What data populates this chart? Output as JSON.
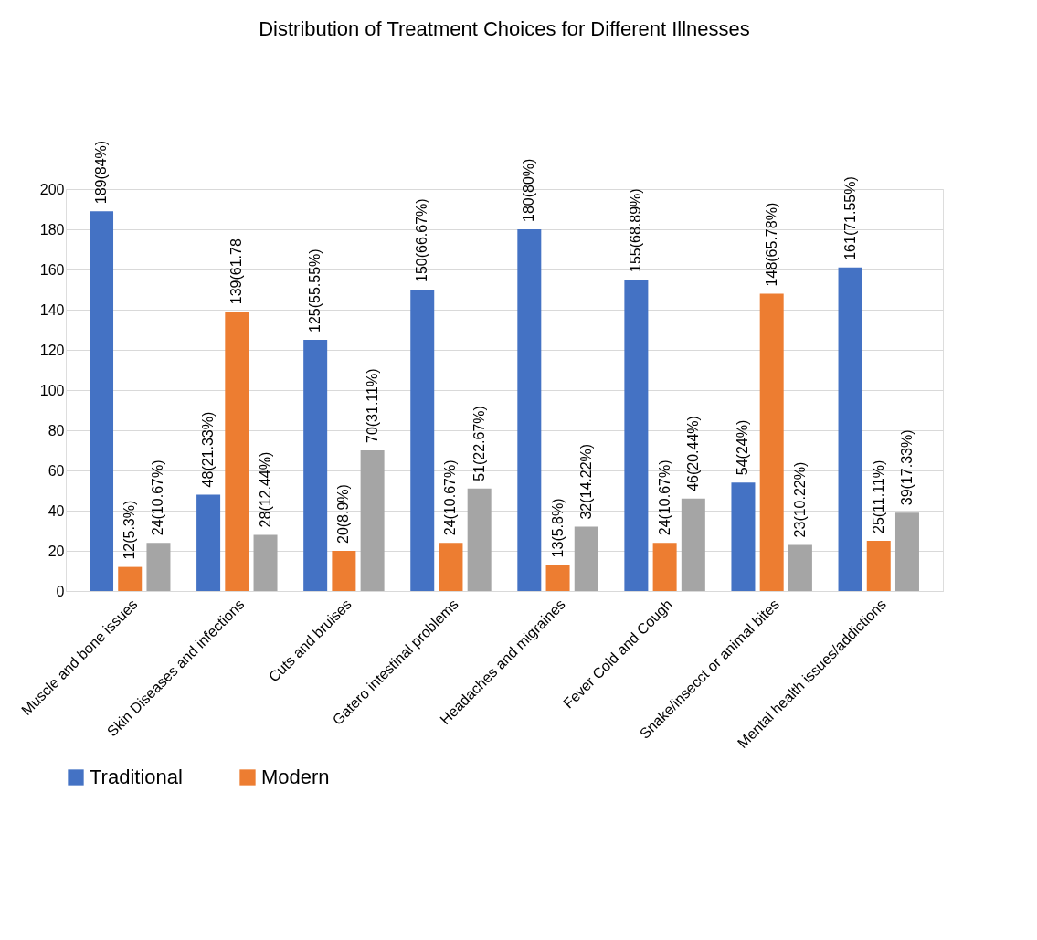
{
  "chart_data": {
    "type": "bar",
    "title": "Distribution of Treatment Choices for Different Illnesses",
    "categories": [
      "Muscle and bone issues",
      "Skin Diseases and infections",
      "Cuts and bruises",
      "Gatero intestinal problems",
      "Headaches and migraines",
      "Fever Cold and Cough",
      "Snake/insecct or animal bites",
      "Mental health issues/addictions"
    ],
    "series": [
      {
        "name": "Traditional",
        "color": "#4472c4",
        "values": [
          189,
          48,
          125,
          150,
          180,
          155,
          54,
          161
        ],
        "value_labels": [
          "189(84%)",
          "48(21.33%)",
          "125(55.55%)",
          "150(66.67%)",
          "180(80%)",
          "155(68.89%)",
          "54(24%)",
          "161(71.55%)"
        ]
      },
      {
        "name": "Modern",
        "color": "#ed7d31",
        "values": [
          12,
          139,
          20,
          24,
          13,
          24,
          148,
          25
        ],
        "value_labels": [
          "12(5.3%)",
          "139(61.78",
          "20(8.9%)",
          "24(10.67%)",
          "13(5.8%)",
          "24(10.67%)",
          "148(65.78%)",
          "25(11.11%)"
        ]
      },
      {
        "color": "#a5a5a5",
        "values": [
          24,
          28,
          70,
          51,
          32,
          46,
          23,
          39
        ],
        "value_labels": [
          "24(10.67%)",
          "28(12.44%)",
          "70(31.11%)",
          "51(22.67%)",
          "32(14.22%)",
          "46(20.44%)",
          "23(10.22%)",
          "39(17.33%)"
        ]
      }
    ],
    "ylim": [
      0,
      200
    ],
    "yticks": [
      0,
      20,
      40,
      60,
      80,
      100,
      120,
      140,
      160,
      180,
      200
    ],
    "grid": "y",
    "legend": "bottom"
  }
}
